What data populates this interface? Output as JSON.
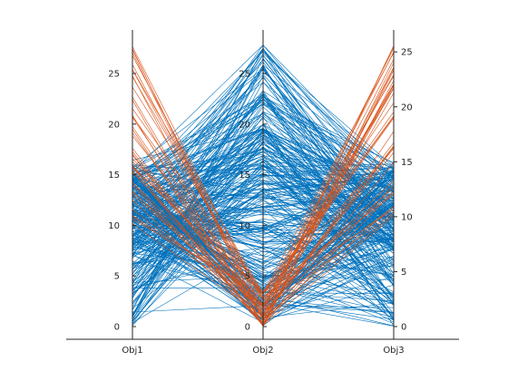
{
  "chart_data": {
    "type": "line",
    "chart_subtype": "parallel-coordinates",
    "title": "",
    "categories": [
      "Obj1",
      "Obj2",
      "Obj3"
    ],
    "axes": [
      {
        "name": "Obj1",
        "ylim": [
          0,
          29.3
        ],
        "ticks": [
          0,
          5,
          10,
          15,
          20,
          25
        ],
        "tick_side": "left"
      },
      {
        "name": "Obj2",
        "ylim": [
          0,
          29.3
        ],
        "ticks": [
          0,
          5,
          10,
          15,
          20,
          25
        ],
        "tick_side": "left"
      },
      {
        "name": "Obj3",
        "ylim": [
          0,
          27.0
        ],
        "ticks": [
          0,
          5,
          10,
          15,
          20,
          25
        ],
        "tick_side": "right"
      }
    ],
    "grid": false,
    "legend": "none",
    "series": [
      {
        "color": "#0072BD",
        "count": 300,
        "description_values": [
          [
            0,
            27.8,
            0
          ],
          [
            27.8,
            0,
            26.8
          ],
          [
            13,
            16,
            12
          ]
        ]
      },
      {
        "color": "#D95319",
        "count": 45,
        "description_values": [
          [
            28.2,
            0.5,
            26.0
          ],
          [
            16,
            1.5,
            12.5
          ]
        ]
      }
    ],
    "series_colors": {
      "blue": "#0072BD",
      "orange": "#D95319"
    }
  }
}
